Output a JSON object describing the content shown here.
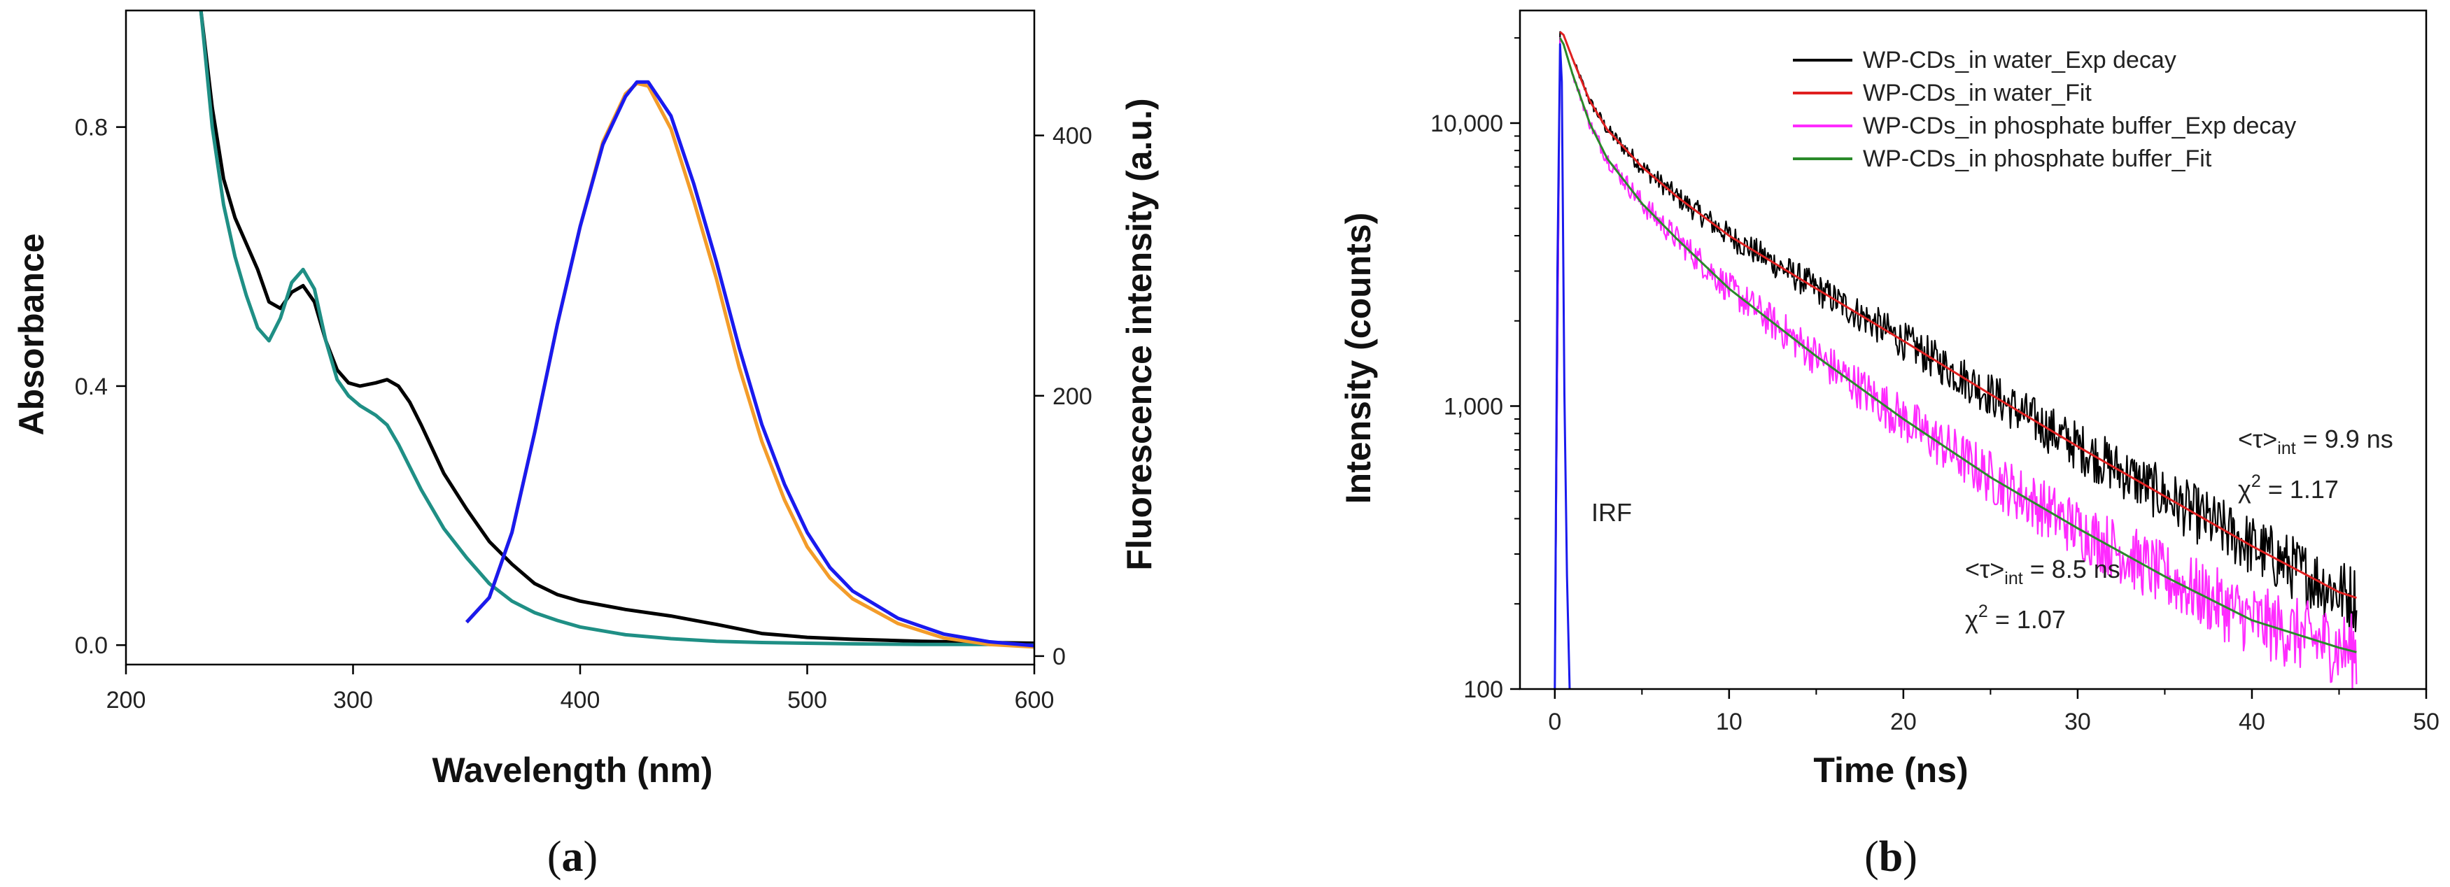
{
  "chart_data": [
    {
      "type": "line",
      "panel_label": "(a)",
      "xlabel": "Wavelength (nm)",
      "ylabel": "Absorbance",
      "y2label": "Fluorescence intensity (a.u.)",
      "xlim": [
        200,
        600
      ],
      "ylim": [
        -0.03,
        0.98
      ],
      "y2lim": [
        -6.5,
        496
      ],
      "xticks": [
        200,
        300,
        400,
        500,
        600
      ],
      "yticks": [
        0.0,
        0.4,
        0.8
      ],
      "ytick_labels": [
        "0.0",
        "0.4",
        "0.8"
      ],
      "y2ticks": [
        0,
        200,
        400
      ],
      "series": [
        {
          "name": "Absorbance (black)",
          "axis": "left",
          "color": "#000000",
          "x": [
            233,
            238,
            243,
            248,
            253,
            258,
            263,
            268,
            273,
            278,
            283,
            288,
            293,
            298,
            303,
            310,
            315,
            320,
            325,
            330,
            340,
            350,
            360,
            370,
            380,
            390,
            400,
            420,
            440,
            460,
            480,
            500,
            520,
            550,
            580,
            600
          ],
          "y": [
            0.98,
            0.83,
            0.72,
            0.66,
            0.62,
            0.58,
            0.53,
            0.52,
            0.545,
            0.555,
            0.53,
            0.47,
            0.425,
            0.405,
            0.4,
            0.405,
            0.41,
            0.4,
            0.375,
            0.34,
            0.265,
            0.21,
            0.16,
            0.125,
            0.095,
            0.078,
            0.068,
            0.055,
            0.045,
            0.032,
            0.018,
            0.012,
            0.009,
            0.006,
            0.004,
            0.003
          ]
        },
        {
          "name": "Absorbance (teal)",
          "axis": "left",
          "color": "#1f8f85",
          "x": [
            233,
            238,
            243,
            248,
            253,
            258,
            263,
            268,
            273,
            278,
            283,
            288,
            293,
            298,
            303,
            310,
            315,
            320,
            325,
            330,
            340,
            350,
            360,
            370,
            380,
            390,
            400,
            420,
            440,
            460,
            480,
            500,
            520,
            550,
            580,
            600
          ],
          "y": [
            0.98,
            0.8,
            0.68,
            0.6,
            0.54,
            0.49,
            0.47,
            0.505,
            0.56,
            0.58,
            0.55,
            0.47,
            0.41,
            0.385,
            0.37,
            0.355,
            0.34,
            0.31,
            0.275,
            0.24,
            0.18,
            0.135,
            0.095,
            0.068,
            0.05,
            0.038,
            0.028,
            0.016,
            0.01,
            0.006,
            0.004,
            0.003,
            0.002,
            0.001,
            0.001,
            0.0
          ]
        },
        {
          "name": "Fluorescence (orange)",
          "axis": "right",
          "color": "#f39c2a",
          "x": [
            350,
            360,
            370,
            380,
            390,
            400,
            410,
            420,
            425,
            430,
            440,
            450,
            460,
            470,
            480,
            490,
            500,
            510,
            520,
            540,
            560,
            580,
            600
          ],
          "y": [
            26,
            45,
            95,
            172,
            255,
            330,
            395,
            432,
            440,
            438,
            405,
            350,
            290,
            222,
            165,
            120,
            84,
            60,
            44,
            25,
            14,
            9,
            7
          ]
        },
        {
          "name": "Fluorescence (blue)",
          "axis": "right",
          "color": "#1a1aee",
          "x": [
            350,
            360,
            370,
            380,
            390,
            400,
            410,
            420,
            425,
            430,
            440,
            450,
            460,
            470,
            480,
            490,
            500,
            510,
            520,
            540,
            560,
            580,
            600
          ],
          "y": [
            26,
            45,
            95,
            172,
            255,
            330,
            393,
            430,
            441,
            441,
            415,
            363,
            303,
            237,
            178,
            132,
            95,
            68,
            50,
            29,
            17,
            11,
            8
          ]
        }
      ]
    },
    {
      "type": "line",
      "yscale": "log",
      "panel_label": "(b)",
      "xlabel": "Time (ns)",
      "ylabel": "Intensity (counts)",
      "xlim": [
        -2,
        50
      ],
      "ylim": [
        100,
        25000
      ],
      "xticks": [
        0,
        10,
        20,
        30,
        40,
        50
      ],
      "yticks": [
        100,
        1000,
        10000
      ],
      "ytick_labels": [
        "100",
        "1,000",
        "10,000"
      ],
      "legend_position": "top-right",
      "legend": [
        "WP-CDs_in water_Exp decay",
        "WP-CDs_in water_Fit",
        "WP-CDs_in phosphate buffer_Exp decay",
        "WP-CDs_in phosphate buffer_Fit"
      ],
      "series": [
        {
          "name": "WP-CDs_in water_Exp decay",
          "color": "#000000",
          "noise": true,
          "x": [
            0,
            0.3,
            0.5,
            1,
            2,
            3,
            5,
            7,
            10,
            15,
            20,
            25,
            30,
            35,
            40,
            45,
            46
          ],
          "y": [
            100,
            21000,
            20500,
            17000,
            12000,
            9500,
            7000,
            5500,
            4000,
            2600,
            1700,
            1100,
            720,
            480,
            320,
            220,
            210
          ]
        },
        {
          "name": "WP-CDs_in water_Fit",
          "color": "#e02020",
          "x": [
            0.3,
            0.5,
            1,
            2,
            3,
            5,
            7,
            10,
            15,
            20,
            25,
            30,
            35,
            40,
            45,
            46
          ],
          "y": [
            21000,
            20500,
            17000,
            12000,
            9500,
            7000,
            5500,
            4000,
            2600,
            1700,
            1100,
            720,
            480,
            320,
            220,
            210
          ]
        },
        {
          "name": "WP-CDs_in phosphate buffer_Exp decay",
          "color": "#ff2bff",
          "noise": true,
          "x": [
            0,
            0.3,
            0.5,
            1,
            2,
            3,
            5,
            7,
            10,
            15,
            20,
            25,
            30,
            35,
            40,
            45,
            46
          ],
          "y": [
            100,
            20000,
            19000,
            15000,
            10000,
            7500,
            5200,
            3900,
            2600,
            1500,
            900,
            560,
            370,
            250,
            175,
            140,
            135
          ]
        },
        {
          "name": "WP-CDs_in phosphate buffer_Fit",
          "color": "#2a8a2a",
          "x": [
            0.3,
            0.5,
            1,
            2,
            3,
            5,
            7,
            10,
            15,
            20,
            25,
            30,
            35,
            40,
            45,
            46
          ],
          "y": [
            20000,
            19000,
            15000,
            10000,
            7500,
            5200,
            3900,
            2600,
            1500,
            900,
            560,
            370,
            250,
            175,
            140,
            135
          ]
        },
        {
          "name": "IRF",
          "color": "#1a1aee",
          "x": [
            0,
            0.15,
            0.3,
            0.4,
            0.55,
            0.7,
            0.85
          ],
          "y": [
            100,
            3000,
            19000,
            14000,
            1100,
            250,
            100
          ]
        }
      ],
      "annotations": [
        {
          "id": "irf",
          "text": "IRF"
        },
        {
          "id": "tau-water",
          "prefix": "<τ>",
          "sub": "int",
          "suffix": " = 9.9 ns"
        },
        {
          "id": "chi-water",
          "prefix": "χ",
          "sup": "2",
          "suffix": " = 1.17"
        },
        {
          "id": "tau-buffer",
          "prefix": "<τ>",
          "sub": "int",
          "suffix": " = 8.5 ns"
        },
        {
          "id": "chi-buffer",
          "prefix": "χ",
          "sup": "2",
          "suffix": " = 1.07"
        }
      ]
    }
  ],
  "captions": {
    "a_open": "(",
    "a_letter": "a",
    "a_close": ")",
    "b_open": "(",
    "b_letter": "b",
    "b_close": ")"
  }
}
